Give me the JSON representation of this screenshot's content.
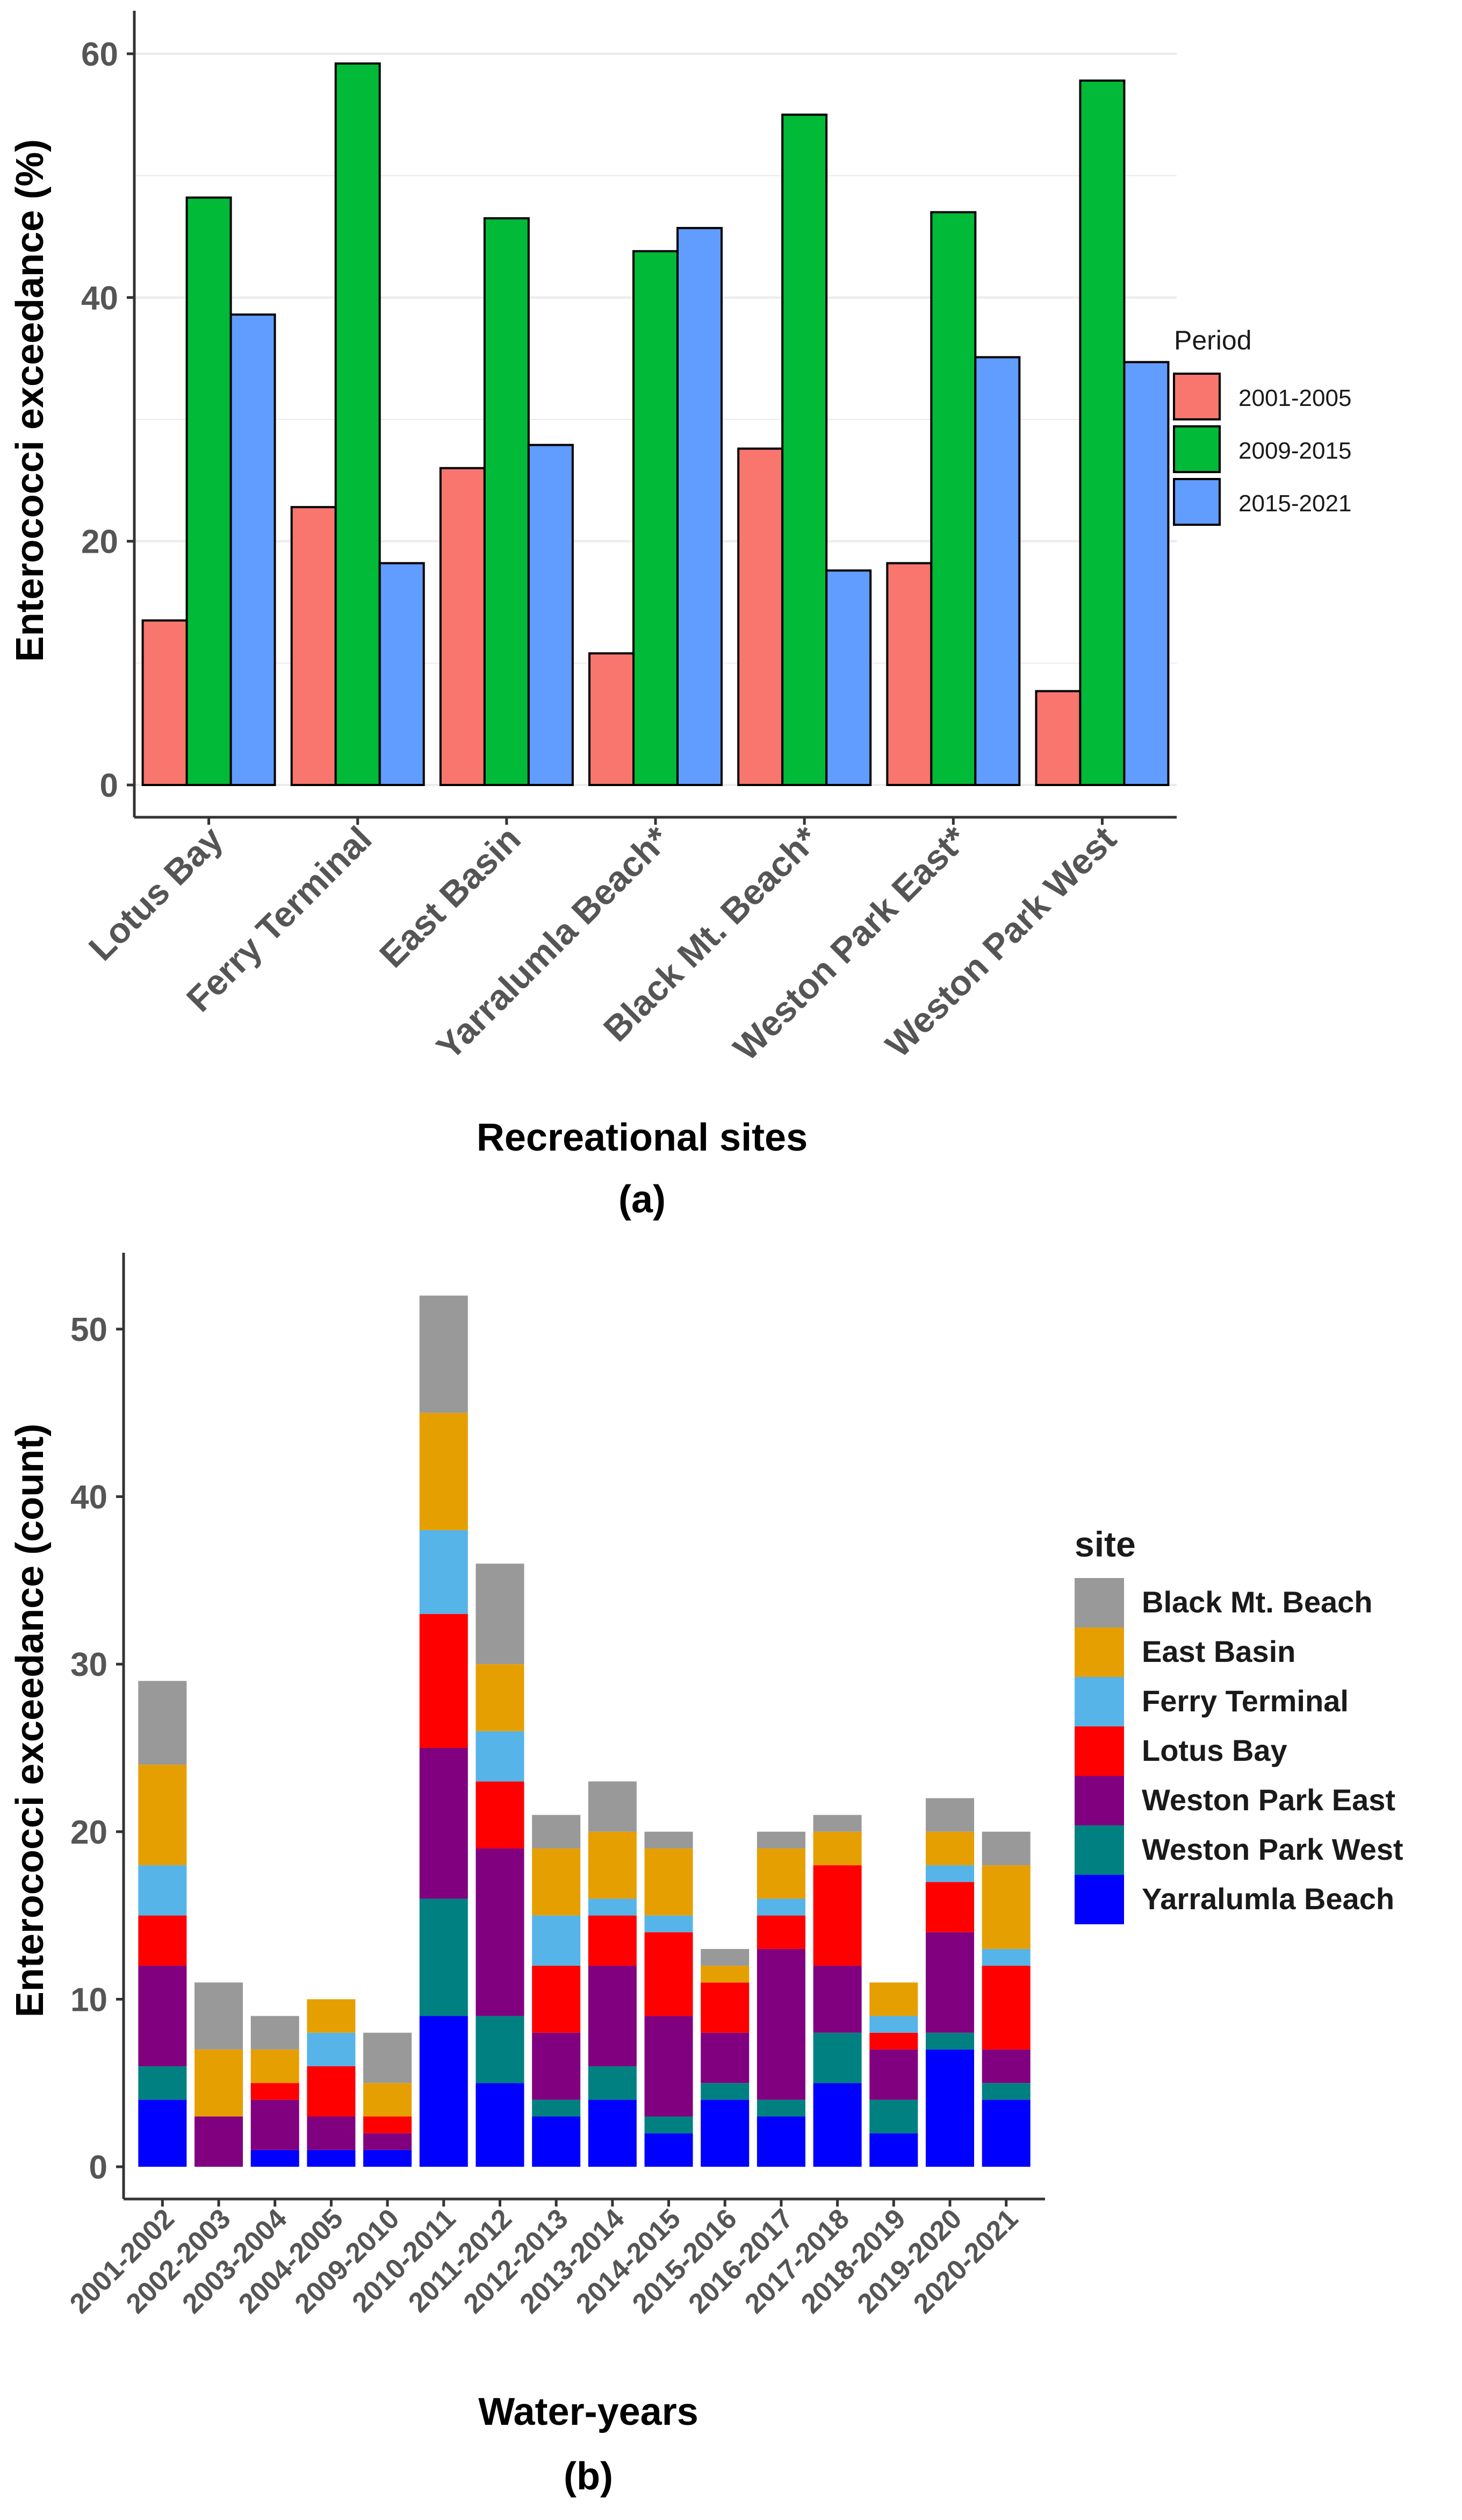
{
  "chart_data": [
    {
      "type": "bar",
      "panel_label": "(a)",
      "title": "",
      "xlabel": "Recreational sites",
      "ylabel": "Enterococci exceedance (%)",
      "ylim": [
        0,
        62
      ],
      "yticks": [
        "0",
        "20",
        "40",
        "60"
      ],
      "categories": [
        "Lotus Bay",
        "Ferry Terminal",
        "East Basin",
        "Yarralumla Beach*",
        "Black Mt. Beach*",
        "Weston Park East*",
        "Weston Park West"
      ],
      "legend_title": "Period",
      "legend_position": "right",
      "series": [
        {
          "name": "2001-2005",
          "color": "#F8766D",
          "values": [
            13.5,
            22.8,
            26,
            10.8,
            27.6,
            18.2,
            7.7
          ]
        },
        {
          "name": "2009-2015",
          "color": "#00BA38",
          "values": [
            48.2,
            59.2,
            46.5,
            43.8,
            55,
            47,
            57.8
          ]
        },
        {
          "name": "2015-2021",
          "color": "#619CFF",
          "values": [
            38.6,
            18.2,
            27.9,
            45.7,
            17.6,
            35.1,
            34.7
          ]
        }
      ]
    },
    {
      "type": "bar",
      "stacked": true,
      "panel_label": "(b)",
      "title": "",
      "xlabel": "Water-years",
      "ylabel": "Enterococci exceedance (count)",
      "ylim": [
        0,
        55
      ],
      "yticks": [
        "0",
        "10",
        "20",
        "30",
        "40",
        "50"
      ],
      "categories": [
        "2001-2002",
        "2002-2003",
        "2003-2004",
        "2004-2005",
        "2009-2010",
        "2010-2011",
        "2011-2012",
        "2012-2013",
        "2013-2014",
        "2014-2015",
        "2015-2016",
        "2016-2017",
        "2017-2018",
        "2018-2019",
        "2019-2020",
        "2020-2021"
      ],
      "legend_title": "site",
      "legend_position": "right",
      "series": [
        {
          "name": "Yarralumla Beach",
          "color": "#0000FF",
          "values": [
            4,
            0,
            1,
            1,
            1,
            9,
            5,
            3,
            4,
            2,
            4,
            3,
            5,
            2,
            7,
            4
          ]
        },
        {
          "name": "Weston Park West",
          "color": "#008080",
          "values": [
            2,
            0,
            0,
            0,
            0,
            7,
            4,
            1,
            2,
            1,
            1,
            1,
            3,
            2,
            1,
            1
          ]
        },
        {
          "name": "Weston Park East",
          "color": "#800080",
          "values": [
            6,
            3,
            3,
            2,
            1,
            9,
            10,
            4,
            6,
            6,
            3,
            9,
            4,
            3,
            6,
            2
          ]
        },
        {
          "name": "Lotus Bay",
          "color": "#FF0000",
          "values": [
            3,
            0,
            1,
            3,
            1,
            8,
            4,
            4,
            3,
            5,
            3,
            2,
            6,
            1,
            3,
            5
          ]
        },
        {
          "name": "Ferry Terminal",
          "color": "#56B4E9",
          "values": [
            3,
            0,
            0,
            2,
            0,
            5,
            3,
            3,
            1,
            1,
            0,
            1,
            0,
            1,
            1,
            1
          ]
        },
        {
          "name": "East Basin",
          "color": "#E69F00",
          "values": [
            6,
            4,
            2,
            2,
            2,
            7,
            4,
            4,
            4,
            4,
            1,
            3,
            2,
            2,
            2,
            5
          ]
        },
        {
          "name": "Black Mt. Beach",
          "color": "#999999",
          "values": [
            5,
            4,
            2,
            0,
            3,
            7,
            6,
            2,
            3,
            1,
            1,
            1,
            1,
            0,
            2,
            2
          ]
        }
      ],
      "legend_order": [
        "Black Mt. Beach",
        "East Basin",
        "Ferry Terminal",
        "Lotus Bay",
        "Weston Park East",
        "Weston Park West",
        "Yarralumla Beach"
      ]
    }
  ]
}
